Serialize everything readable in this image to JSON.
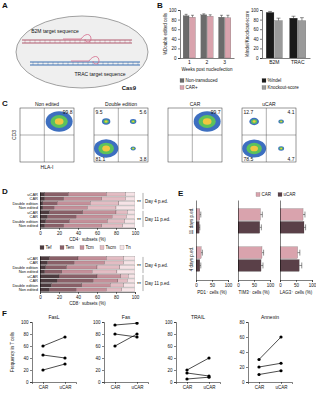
{
  "diagram": {
    "panel": "A",
    "labels": [
      "B2M target sequence",
      "TRAC target sequence",
      "Cas9"
    ]
  },
  "chart_data": [
    {
      "type": "bar",
      "panel": "B",
      "y_label": "%Double edited cells",
      "x_label": "Weeks post nucleofection",
      "categories": [
        "1",
        "2",
        "3"
      ],
      "series": [
        {
          "name": "Non-transduced",
          "color": "#6b6b6b",
          "values": [
            88,
            90,
            85
          ],
          "errors": [
            3,
            2,
            4
          ]
        },
        {
          "name": "CAR+",
          "color": "#d9a3ad",
          "values": [
            85,
            87,
            84
          ],
          "errors": [
            4,
            3,
            5
          ]
        }
      ],
      "ylim": [
        0,
        100
      ],
      "yticks": [
        0,
        20,
        40,
        60,
        80,
        100
      ],
      "legend": "bottom"
    },
    {
      "type": "bar",
      "y_label": "%Indel/Knockout-score",
      "categories": [
        "B2M",
        "TRAC"
      ],
      "series": [
        {
          "name": "%Indel",
          "color": "#1a1a1a",
          "values": [
            95,
            83
          ],
          "errors": [
            2,
            4
          ]
        },
        {
          "name": "Knockout-score",
          "color": "#9a9a9a",
          "values": [
            78,
            78
          ],
          "errors": [
            5,
            6
          ]
        }
      ],
      "ylim": [
        0,
        100
      ],
      "yticks": [
        0,
        20,
        40,
        60,
        80,
        100
      ],
      "legend": "bottom"
    },
    {
      "type": "quadrant",
      "panel": "C",
      "x_label": "HLA-I",
      "y_label": "CD3",
      "series": [
        {
          "name": "Non edited",
          "values": [
            null,
            99.8,
            null,
            null
          ]
        },
        {
          "name": "Double edition",
          "values": [
            9.5,
            5.6,
            81.1,
            3.8
          ]
        },
        {
          "name": "CAR",
          "values": [
            null,
            99.7,
            null,
            null
          ]
        },
        {
          "name": "uCAR",
          "values": [
            12.7,
            4.1,
            78.5,
            4.7
          ]
        }
      ]
    },
    {
      "type": "bar",
      "orientation": "horizontal",
      "stacked": true,
      "panel": "D",
      "x_label": "CD4⁺ subsets (%)",
      "categories": [
        "uCAR",
        "CAR",
        "Double edition",
        "Non edited",
        "uCAR",
        "CAR",
        "Double edition",
        "Non edited"
      ],
      "groups": [
        "Day 4 p.ed.",
        "Day 11 p.ed."
      ],
      "annotations": [
        "**",
        "**"
      ],
      "series": [
        {
          "name": "Tef",
          "color": "#4d3b3f",
          "values": [
            5,
            5,
            3,
            3,
            10,
            8,
            6,
            5
          ]
        },
        {
          "name": "Tem",
          "color": "#8a6068",
          "values": [
            25,
            20,
            15,
            12,
            35,
            30,
            25,
            20
          ]
        },
        {
          "name": "Tcm",
          "color": "#c48f99",
          "values": [
            40,
            40,
            35,
            35,
            35,
            38,
            40,
            40
          ]
        },
        {
          "name": "Tscm",
          "color": "#e3bcc3",
          "values": [
            20,
            25,
            30,
            30,
            12,
            15,
            18,
            22
          ]
        },
        {
          "name": "Tn",
          "color": "#f6e3e6",
          "values": [
            10,
            10,
            17,
            20,
            8,
            9,
            11,
            13
          ]
        }
      ],
      "xlim": [
        0,
        100
      ],
      "xticks": [
        0,
        20,
        40,
        60,
        80,
        100
      ],
      "legend": "bottom"
    },
    {
      "type": "bar",
      "orientation": "horizontal",
      "stacked": true,
      "x_label": "CD8⁺ subsets (%)",
      "categories": [
        "uCAR",
        "CAR",
        "Double edition",
        "Non edited",
        "uCAR",
        "CAR",
        "Double edition",
        "Non edited"
      ],
      "groups": [
        "Day 4 p.ed.",
        "Day 11 p.ed."
      ],
      "annotations": [
        "**",
        "**"
      ],
      "series": [
        {
          "color": "#4d3b3f",
          "values": [
            10,
            8,
            6,
            5,
            20,
            18,
            12,
            10
          ]
        },
        {
          "color": "#8a6068",
          "values": [
            30,
            28,
            22,
            18,
            40,
            38,
            32,
            28
          ]
        },
        {
          "color": "#c48f99",
          "values": [
            30,
            32,
            32,
            32,
            25,
            26,
            30,
            32
          ]
        },
        {
          "color": "#e3bcc3",
          "values": [
            18,
            20,
            24,
            26,
            8,
            10,
            14,
            16
          ]
        },
        {
          "color": "#f6e3e6",
          "values": [
            12,
            12,
            16,
            19,
            7,
            8,
            12,
            14
          ]
        }
      ],
      "xlim": [
        0,
        100
      ],
      "xticks": [
        0,
        20,
        40,
        60,
        80,
        100
      ]
    },
    {
      "type": "bar",
      "orientation": "horizontal",
      "panel": "E",
      "x_label": "PD1⁺ cells (%)",
      "categories": [
        "11 days p.ed.",
        "4 days p.ed."
      ],
      "series": [
        {
          "name": "CAR",
          "color": "#d9a3ad",
          "values": [
            12,
            16
          ],
          "errors": [
            3,
            4
          ]
        },
        {
          "name": "uCAR",
          "color": "#5a4048",
          "values": [
            10,
            12
          ],
          "errors": [
            2,
            3
          ]
        }
      ],
      "xlim": [
        0,
        100
      ],
      "xticks": [
        0,
        50,
        100
      ],
      "legend": "top-right"
    },
    {
      "type": "bar",
      "orientation": "horizontal",
      "x_label": "TIM3⁺ cells (%)",
      "categories": [
        null,
        null
      ],
      "series": [
        {
          "color": "#d9a3ad",
          "values": [
            70,
            75
          ],
          "errors": [
            6,
            5
          ]
        },
        {
          "color": "#5a4048",
          "values": [
            68,
            72
          ],
          "errors": [
            5,
            6
          ]
        }
      ],
      "xlim": [
        0,
        100
      ],
      "xticks": [
        0,
        50,
        100
      ]
    },
    {
      "type": "bar",
      "orientation": "horizontal",
      "x_label": "LAG3⁺ cells (%)",
      "categories": [
        null,
        null
      ],
      "series": [
        {
          "color": "#d9a3ad",
          "values": [
            72,
            55
          ],
          "errors": [
            6,
            7
          ]
        },
        {
          "color": "#5a4048",
          "values": [
            75,
            60
          ],
          "errors": [
            5,
            8
          ]
        }
      ],
      "xlim": [
        0,
        100
      ],
      "xticks": [
        0,
        50,
        100
      ]
    },
    {
      "type": "line",
      "panel": "F",
      "title": "FasL",
      "y_label": "Frequency in T cells",
      "categories": [
        "CAR",
        "uCAR"
      ],
      "series": [
        {
          "color": "#000000",
          "marker": "circle",
          "values": [
            60,
            75
          ]
        },
        {
          "color": "#000000",
          "marker": "circle",
          "values": [
            45,
            40
          ]
        },
        {
          "color": "#000000",
          "marker": "circle",
          "values": [
            20,
            30
          ]
        }
      ],
      "ylim": [
        0,
        100
      ],
      "yticks": [
        0,
        20,
        40,
        60,
        80,
        100
      ]
    },
    {
      "type": "line",
      "title": "Fas",
      "categories": [
        "CAR",
        "uCAR"
      ],
      "series": [
        {
          "color": "#000000",
          "marker": "circle",
          "values": [
            95,
            98
          ]
        },
        {
          "color": "#000000",
          "marker": "circle",
          "values": [
            80,
            75
          ]
        },
        {
          "color": "#000000",
          "marker": "circle",
          "values": [
            60,
            80
          ]
        }
      ],
      "ylim": [
        0,
        100
      ],
      "yticks": [
        0,
        20,
        40,
        60,
        80,
        100
      ]
    },
    {
      "type": "line",
      "title": "TRAIL",
      "categories": [
        "CAR",
        "uCAR"
      ],
      "series": [
        {
          "color": "#000000",
          "marker": "circle",
          "values": [
            20,
            40
          ]
        },
        {
          "color": "#000000",
          "marker": "circle",
          "values": [
            15,
            10
          ]
        },
        {
          "color": "#000000",
          "marker": "circle",
          "values": [
            5,
            8
          ]
        }
      ],
      "ylim": [
        0,
        100
      ],
      "yticks": [
        0,
        20,
        40,
        60,
        80,
        100
      ]
    },
    {
      "type": "line",
      "title": "Annexin",
      "categories": [
        "CAR",
        "uCAR"
      ],
      "series": [
        {
          "color": "#000000",
          "marker": "circle",
          "values": [
            30,
            60
          ]
        },
        {
          "color": "#000000",
          "marker": "circle",
          "values": [
            20,
            25
          ]
        },
        {
          "color": "#000000",
          "marker": "circle",
          "values": [
            10,
            15
          ]
        }
      ],
      "ylim": [
        0,
        80
      ],
      "yticks": [
        0,
        20,
        40,
        60,
        80
      ]
    }
  ]
}
